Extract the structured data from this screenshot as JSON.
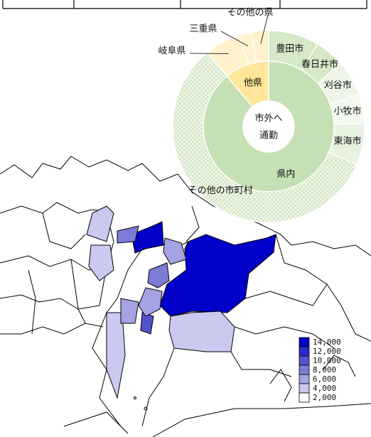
{
  "donut": {
    "type": "pie",
    "center_label": [
      "市外へ",
      "通勤"
    ],
    "inner": [
      {
        "name": "県内",
        "value": 89,
        "color": "#c5e0b4"
      },
      {
        "name": "他県",
        "value": 11,
        "color": "#ffe699"
      }
    ],
    "outer": [
      {
        "name": "豊田市",
        "value": 8.5,
        "color": "#d5e8c8"
      },
      {
        "name": "春日井市",
        "value": 5,
        "color": "#d5e8c8"
      },
      {
        "name": "刈谷市",
        "value": 6,
        "color": "#eef5e8"
      },
      {
        "name": "小牧市",
        "value": 5,
        "color": "#f4f9f0"
      },
      {
        "name": "東海市",
        "value": 7,
        "color": "#e8f2e0"
      },
      {
        "name": "その他の市町村",
        "value": 57.5,
        "color": "#e6f0dc"
      },
      {
        "name": "岐阜県",
        "value": 6,
        "color": "#fff2cc"
      },
      {
        "name": "三重県",
        "value": 2,
        "color": "#fff2cc"
      },
      {
        "name": "その他の県",
        "value": 3,
        "color": "#fff2cc"
      }
    ]
  },
  "map": {
    "type": "choropleth",
    "legend": [
      {
        "value": 14000,
        "label": "14,000",
        "color": "#0000c8"
      },
      {
        "value": 12000,
        "label": "12,000",
        "color": "#2a2ac8"
      },
      {
        "value": 10000,
        "label": "10,000",
        "color": "#5252cc"
      },
      {
        "value": 8000,
        "label": "8,000",
        "color": "#7c7cd8"
      },
      {
        "value": 6000,
        "label": "6,000",
        "color": "#a4a4e4"
      },
      {
        "value": 4000,
        "label": "4,000",
        "color": "#cacaf0"
      },
      {
        "value": 2000,
        "label": "2,000",
        "color": "#ffffff"
      }
    ],
    "values": [
      15000,
      14500,
      9000,
      5000,
      4500,
      7000,
      9000,
      11000,
      6000,
      4500,
      5000,
      6500
    ]
  }
}
